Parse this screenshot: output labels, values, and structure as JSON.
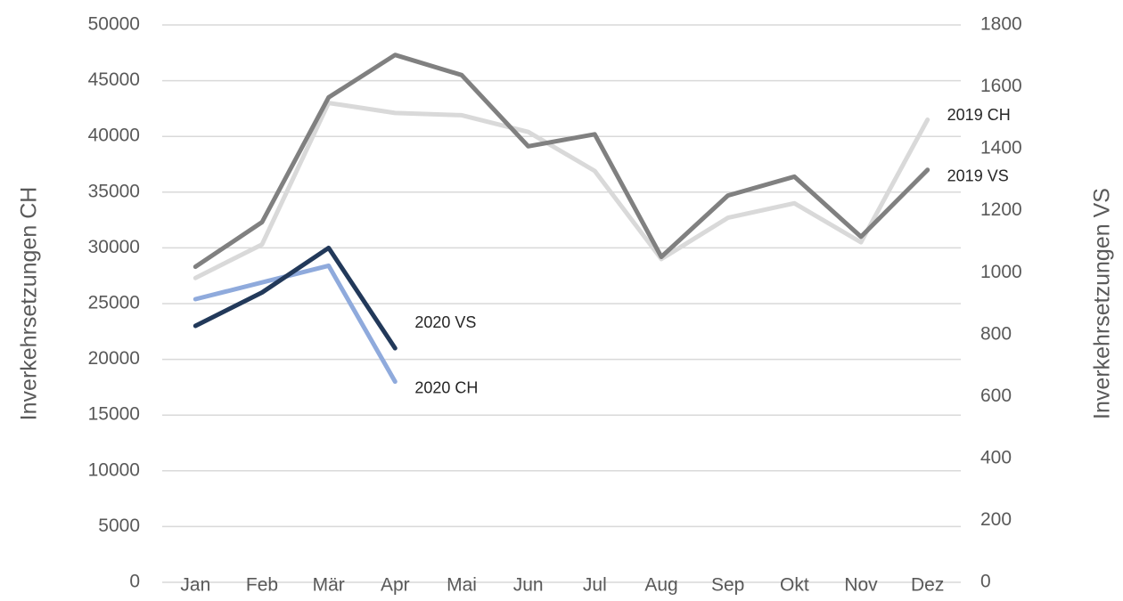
{
  "chart_data": {
    "type": "line",
    "y_label": "Inverkehrsetzungen CH",
    "y2_label": "Inverkehrsetzungen VS",
    "categories": [
      "Jan",
      "Feb",
      "Mär",
      "Apr",
      "Mai",
      "Jun",
      "Jul",
      "Aug",
      "Sep",
      "Okt",
      "Nov",
      "Dez"
    ],
    "series": [
      {
        "name": "2019 CH",
        "color": "#d9d9d9",
        "axis": "y",
        "values": [
          27300,
          30300,
          43000,
          42100,
          41900,
          40400,
          36900,
          29000,
          32700,
          34000,
          30500,
          41500
        ]
      },
      {
        "name": "2019 VS",
        "color": "#808080",
        "axis": "y2",
        "values": [
          1019,
          1163,
          1566,
          1703,
          1638,
          1408,
          1447,
          1051,
          1249,
          1310,
          1116,
          1332
        ]
      },
      {
        "name": "2020 CH",
        "color": "#8faadc",
        "axis": "y",
        "values": [
          25400,
          26900,
          28400,
          18000,
          null,
          null,
          null,
          null,
          null,
          null,
          null,
          null
        ]
      },
      {
        "name": "2020 VS",
        "color": "#22395a",
        "axis": "y2",
        "values": [
          828,
          936,
          1080,
          756,
          null,
          null,
          null,
          null,
          null,
          null,
          null,
          null
        ]
      }
    ],
    "ylim": [
      0,
      50000
    ],
    "yticks": [
      0,
      5000,
      10000,
      15000,
      20000,
      25000,
      30000,
      35000,
      40000,
      45000,
      50000
    ],
    "y2lim": [
      0,
      1800
    ],
    "y2ticks": [
      0,
      200,
      400,
      600,
      800,
      1000,
      1200,
      1400,
      1600,
      1800
    ],
    "grid": true
  }
}
